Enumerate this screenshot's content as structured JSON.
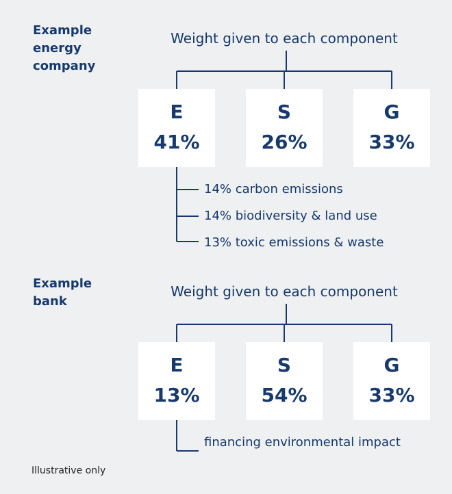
{
  "sections": [
    {
      "label": "Example energy company",
      "heading": "Weight given to each component",
      "components": [
        {
          "letter": "E",
          "weight": "41%"
        },
        {
          "letter": "S",
          "weight": "26%"
        },
        {
          "letter": "G",
          "weight": "33%"
        }
      ],
      "breakdown": [
        "14% carbon emissions",
        "14% biodiversity & land use",
        "13% toxic emissions & waste"
      ]
    },
    {
      "label": "Example bank",
      "heading": "Weight given to each component",
      "components": [
        {
          "letter": "E",
          "weight": "13%"
        },
        {
          "letter": "S",
          "weight": "54%"
        },
        {
          "letter": "G",
          "weight": "33%"
        }
      ],
      "breakdown": [
        "financing environmental impact"
      ]
    }
  ],
  "footer": "Illustrative only"
}
